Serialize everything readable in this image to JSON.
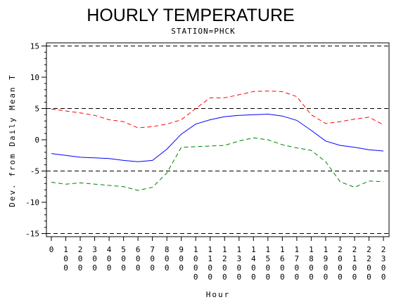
{
  "chart_data": {
    "type": "line",
    "title": "HOURLY TEMPERATURE",
    "subtitle": "STATION=PHCK",
    "xlabel": "Hour",
    "ylabel": "Dev. from Daily Mean T",
    "x": [
      0,
      100,
      200,
      300,
      400,
      500,
      600,
      700,
      800,
      900,
      1000,
      1100,
      1200,
      1300,
      1400,
      1500,
      1600,
      1700,
      1800,
      1900,
      2000,
      2100,
      2200,
      2300
    ],
    "x_tick_labels": [
      "0",
      "100",
      "200",
      "300",
      "400",
      "500",
      "600",
      "700",
      "800",
      "900",
      "1000",
      "1100",
      "1200",
      "1300",
      "1400",
      "1500",
      "1600",
      "1700",
      "1800",
      "1900",
      "2000",
      "2100",
      "2200",
      "2300"
    ],
    "ylim": [
      -15.5,
      15.5
    ],
    "y_ticks": [
      -15,
      -10,
      -5,
      0,
      5,
      10,
      15
    ],
    "y_tick_labels": [
      "-15",
      "-10",
      "-5",
      "0",
      "5",
      "10",
      "15"
    ],
    "reference_lines": [
      -15,
      -5,
      5,
      15
    ],
    "series": [
      {
        "color": "#ff0000",
        "style": "dashed",
        "values": [
          4.9,
          4.6,
          4.3,
          3.9,
          3.2,
          2.9,
          1.9,
          2.1,
          2.5,
          3.2,
          5.0,
          6.7,
          6.7,
          7.2,
          7.7,
          7.8,
          7.7,
          6.9,
          4.0,
          2.6,
          2.9,
          3.3,
          3.6,
          2.4
        ]
      },
      {
        "color": "#0000ff",
        "style": "solid",
        "values": [
          -2.2,
          -2.5,
          -2.8,
          -2.9,
          -3.0,
          -3.3,
          -3.5,
          -3.3,
          -1.5,
          0.9,
          2.5,
          3.2,
          3.7,
          3.9,
          4.0,
          4.1,
          3.8,
          3.1,
          1.5,
          -0.2,
          -0.9,
          -1.2,
          -1.6,
          -1.8
        ]
      },
      {
        "color": "#008000",
        "style": "dashed",
        "values": [
          -6.8,
          -7.1,
          -6.9,
          -7.1,
          -7.3,
          -7.5,
          -8.1,
          -7.6,
          -5.3,
          -1.2,
          -1.1,
          -1.0,
          -0.9,
          -0.2,
          0.3,
          0.0,
          -0.8,
          -1.3,
          -1.7,
          -3.5,
          -6.7,
          -7.6,
          -6.6,
          -6.7
        ]
      }
    ]
  }
}
